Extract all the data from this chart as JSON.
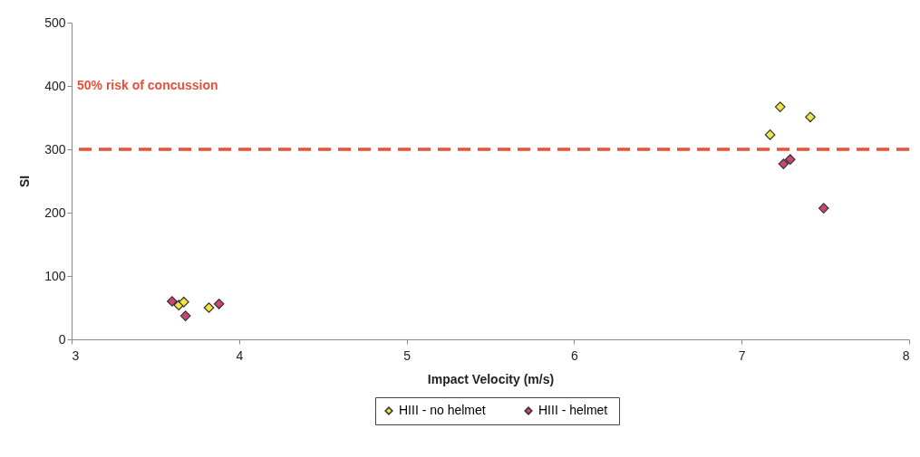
{
  "chart_data": {
    "type": "scatter",
    "xlabel": "Impact Velocity (m/s)",
    "ylabel": "SI",
    "xlim": [
      3,
      8
    ],
    "xticks": [
      3,
      4,
      5,
      6,
      7,
      8
    ],
    "ylim": [
      0,
      500
    ],
    "yticks": [
      0,
      100,
      200,
      300,
      400,
      500
    ],
    "grid": false,
    "legend": "bottom",
    "marker": "diamond",
    "series": [
      {
        "name": "HIII - no helmet",
        "color": "#f0e442",
        "x": [
          3.64,
          3.67,
          3.82,
          7.17,
          7.23,
          7.41
        ],
        "values": [
          54,
          59,
          50,
          323,
          367,
          351
        ]
      },
      {
        "name": "HIII  - helmet",
        "color": "#cc4477",
        "x": [
          3.6,
          3.68,
          3.88,
          7.25,
          7.29,
          7.49
        ],
        "values": [
          60,
          37,
          56,
          277,
          284,
          207
        ]
      }
    ],
    "ref_lines": [
      {
        "axis": "y",
        "value": 300,
        "label": "50% risk of concussion",
        "color": "#e8503a",
        "line_style": "dashed"
      }
    ]
  }
}
